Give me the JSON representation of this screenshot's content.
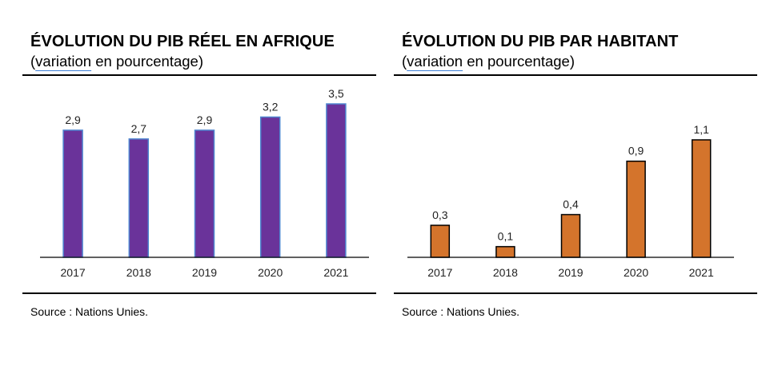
{
  "charts": [
    {
      "title": "ÉVOLUTION DU PIB RÉEL EN AFRIQUE",
      "subtitle_open": "(",
      "subtitle_word": "variation",
      "subtitle_rest": " en pourcentage)",
      "source": "Source : Nations Unies.",
      "colors": {
        "fill": "#6a339a",
        "stroke": "#4f86d0"
      }
    },
    {
      "title": "ÉVOLUTION DU PIB PAR HABITANT",
      "subtitle_open": "(",
      "subtitle_word": "variation",
      "subtitle_rest": " en pourcentage)",
      "source": "Source : Nations Unies.",
      "colors": {
        "fill": "#d4742c",
        "stroke": "#000000"
      }
    }
  ],
  "chart_data": [
    {
      "type": "bar",
      "title": "ÉVOLUTION DU PIB RÉEL EN AFRIQUE",
      "subtitle": "(variation en pourcentage)",
      "categories": [
        "2017",
        "2018",
        "2019",
        "2020",
        "2021"
      ],
      "values": [
        2.9,
        2.7,
        2.9,
        3.2,
        3.5
      ],
      "value_labels": [
        "2,9",
        "2,7",
        "2,9",
        "3,2",
        "3,5"
      ],
      "ylim": [
        0,
        3.5
      ],
      "grid": false,
      "legend": "none"
    },
    {
      "type": "bar",
      "title": "ÉVOLUTION DU PIB PAR HABITANT",
      "subtitle": "(variation en pourcentage)",
      "categories": [
        "2017",
        "2018",
        "2019",
        "2020",
        "2021"
      ],
      "values": [
        0.3,
        0.1,
        0.4,
        0.9,
        1.1
      ],
      "value_labels": [
        "0,3",
        "0,1",
        "0,4",
        "0,9",
        "1,1"
      ],
      "ylim": [
        0,
        1.1
      ],
      "grid": false,
      "legend": "none"
    }
  ]
}
